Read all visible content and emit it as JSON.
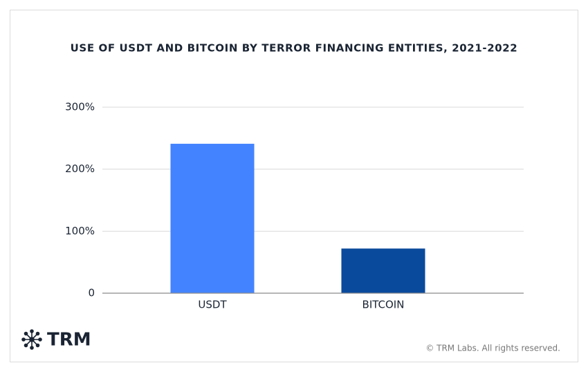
{
  "chart_data": {
    "type": "bar",
    "title": "USE OF USDT AND BITCOIN BY TERROR FINANCING ENTITIES, 2021-2022",
    "categories": [
      "USDT",
      "BITCOIN"
    ],
    "values": [
      241,
      72
    ],
    "colors": [
      "#4483ff",
      "#0a4a9c"
    ],
    "ylim": [
      0,
      300
    ],
    "yticks": [
      0,
      {
        "value": 100,
        "label": "100%"
      },
      {
        "value": 200,
        "label": "200%"
      },
      {
        "value": 300,
        "label": "300%"
      }
    ],
    "grid": true
  },
  "brand": {
    "logo": "TRM",
    "copyright": "© TRM Labs. All rights reserved."
  }
}
